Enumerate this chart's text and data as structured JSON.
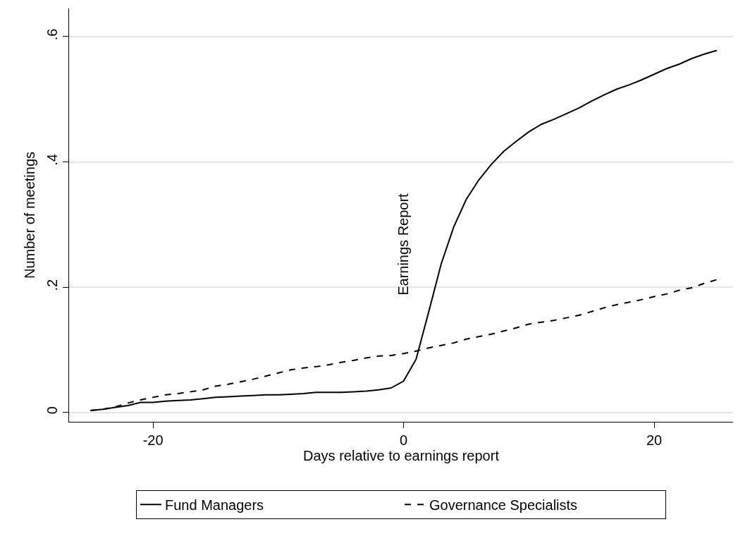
{
  "chart_data": {
    "type": "line",
    "xlabel": "Days relative to earnings report",
    "ylabel": "Number of meetings",
    "x": [
      -25,
      -24,
      -23,
      -22,
      -21,
      -20,
      -19,
      -18,
      -17,
      -16,
      -15,
      -14,
      -13,
      -12,
      -11,
      -10,
      -9,
      -8,
      -7,
      -6,
      -5,
      -4,
      -3,
      -2,
      -1,
      0,
      1,
      2,
      3,
      4,
      5,
      6,
      7,
      8,
      9,
      10,
      11,
      12,
      13,
      14,
      15,
      16,
      17,
      18,
      19,
      20,
      21,
      22,
      23,
      24,
      25
    ],
    "series": [
      {
        "name": "Fund Managers",
        "color": "#000000",
        "line_style": "solid",
        "values": [
          0.003,
          0.005,
          0.008,
          0.011,
          0.016,
          0.016,
          0.018,
          0.019,
          0.02,
          0.022,
          0.024,
          0.025,
          0.026,
          0.027,
          0.028,
          0.028,
          0.029,
          0.03,
          0.032,
          0.032,
          0.032,
          0.033,
          0.034,
          0.036,
          0.039,
          0.05,
          0.085,
          0.16,
          0.237,
          0.296,
          0.34,
          0.371,
          0.396,
          0.417,
          0.433,
          0.448,
          0.46,
          0.468,
          0.477,
          0.486,
          0.497,
          0.507,
          0.516,
          0.523,
          0.531,
          0.54,
          0.549,
          0.556,
          0.565,
          0.572,
          0.578
        ]
      },
      {
        "name": "Governance Specialists",
        "color": "#000000",
        "line_style": "dashed",
        "values": [
          0.003,
          0.005,
          0.009,
          0.015,
          0.02,
          0.024,
          0.028,
          0.03,
          0.033,
          0.036,
          0.042,
          0.045,
          0.049,
          0.053,
          0.058,
          0.063,
          0.068,
          0.071,
          0.073,
          0.076,
          0.08,
          0.083,
          0.087,
          0.09,
          0.091,
          0.094,
          0.098,
          0.103,
          0.107,
          0.111,
          0.117,
          0.121,
          0.125,
          0.13,
          0.135,
          0.141,
          0.144,
          0.147,
          0.151,
          0.155,
          0.161,
          0.167,
          0.172,
          0.176,
          0.18,
          0.185,
          0.189,
          0.195,
          0.199,
          0.206,
          0.212
        ]
      }
    ],
    "xlim": [
      -26.7,
      26.3
    ],
    "xticks": [
      -20,
      0,
      20
    ],
    "ylim": [
      -0.015,
      0.645
    ],
    "yticks": [
      0,
      {
        "value": 0.2,
        "label": ".2"
      },
      {
        "value": 0.4,
        "label": ".4"
      },
      {
        "value": 0.6,
        "label": ".6"
      }
    ],
    "annotations": [
      "Earnings Report"
    ],
    "grid": "y",
    "legend": "bottom",
    "marker": "none"
  }
}
